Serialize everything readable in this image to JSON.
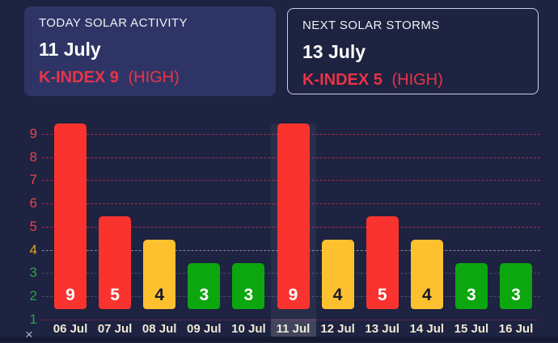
{
  "cards": [
    {
      "title": "TODAY SOLAR ACTIVITY",
      "date": "11 July",
      "kindex": "K-INDEX 9",
      "severity": "(HIGH)"
    },
    {
      "title": "NEXT SOLAR STORMS",
      "date": "13 July",
      "kindex": "K-INDEX 5",
      "severity": "(HIGH)"
    }
  ],
  "chart_data": {
    "type": "bar",
    "title": "",
    "categories": [
      "06 Jul",
      "07 Jul",
      "08 Jul",
      "09 Jul",
      "10 Jul",
      "11 Jul",
      "12 Jul",
      "13 Jul",
      "14 Jul",
      "15 Jul",
      "16 Jul"
    ],
    "values": [
      9,
      5,
      4,
      3,
      3,
      9,
      4,
      5,
      4,
      3,
      3
    ],
    "highlighted_category": "11 Jul",
    "yticks": [
      1,
      2,
      3,
      4,
      5,
      6,
      7,
      8,
      9
    ],
    "ylim": [
      1,
      9
    ],
    "grid": "dashed-horizontal",
    "legend": "none",
    "thresholds": {
      "high_min": 5,
      "medium_is": 4
    },
    "colors": {
      "bar_high": "#fa332f",
      "bar_medium": "#fdc02f",
      "bar_low": "#0ca60f",
      "tick_high": "#ef4151",
      "tick_medium": "#dfa522",
      "tick_low": "#2ca14a",
      "value_label_light": "#ffffff",
      "value_label_dark": "#16192b"
    }
  },
  "chart_controls": {
    "reset_icon": "×"
  },
  "theme": {
    "background": "#1d2340",
    "card_fill": "#2e3566",
    "card_border": "#c9cfe2",
    "accent_red": "#e93347",
    "text_primary": "#ffffff",
    "axis_date_color": "#efe8d6"
  }
}
